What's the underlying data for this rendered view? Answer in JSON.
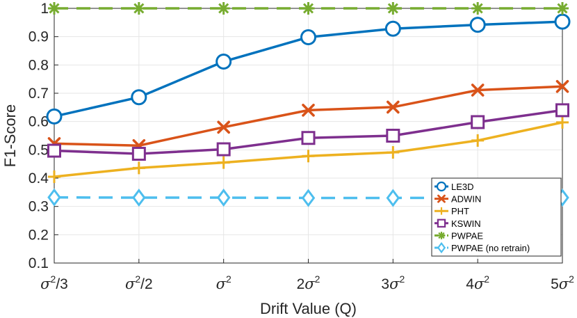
{
  "chart_data": {
    "type": "line",
    "title": "",
    "xlabel": "Drift Value (Q)",
    "ylabel": "F1-Score",
    "categories": [
      {
        "base": "σ",
        "sup": "2",
        "suffix": "/3"
      },
      {
        "base": "σ",
        "sup": "2",
        "suffix": "/2"
      },
      {
        "base": "σ",
        "sup": "2",
        "suffix": ""
      },
      {
        "prefix": "2",
        "base": "σ",
        "sup": "2",
        "suffix": ""
      },
      {
        "prefix": "3",
        "base": "σ",
        "sup": "2",
        "suffix": ""
      },
      {
        "prefix": "4",
        "base": "σ",
        "sup": "2",
        "suffix": ""
      },
      {
        "prefix": "5",
        "base": "σ",
        "sup": "2",
        "suffix": ""
      }
    ],
    "ylim": [
      0.1,
      1.0
    ],
    "yticks": [
      "0.1",
      "0.2",
      "0.3",
      "0.4",
      "0.5",
      "0.6",
      "0.7",
      "0.8",
      "0.9",
      "1"
    ],
    "grid": true,
    "legend_position": "bottom-right",
    "series": [
      {
        "name": "LE3D",
        "color": "#0072BD",
        "marker": "circle",
        "dash": false,
        "values": [
          0.618,
          0.686,
          0.812,
          0.898,
          0.928,
          0.942,
          0.953
        ]
      },
      {
        "name": "ADWIN",
        "color": "#D95319",
        "marker": "x",
        "dash": false,
        "values": [
          0.522,
          0.515,
          0.58,
          0.64,
          0.651,
          0.711,
          0.724
        ]
      },
      {
        "name": "PHT",
        "color": "#EDB120",
        "marker": "plus",
        "dash": false,
        "values": [
          0.405,
          0.436,
          0.455,
          0.478,
          0.491,
          0.533,
          0.597
        ]
      },
      {
        "name": "KSWIN",
        "color": "#7E2F8E",
        "marker": "square",
        "dash": false,
        "values": [
          0.497,
          0.486,
          0.502,
          0.542,
          0.55,
          0.598,
          0.64
        ]
      },
      {
        "name": "PWPAE",
        "color": "#77AC30",
        "marker": "star",
        "dash": true,
        "values": [
          1.0,
          1.0,
          1.0,
          1.0,
          1.0,
          1.0,
          1.0
        ]
      },
      {
        "name": "PWPAE (no retrain)",
        "color": "#4DBEEE",
        "marker": "diamond",
        "dash": true,
        "values": [
          0.332,
          0.331,
          0.331,
          0.33,
          0.33,
          0.331,
          0.331
        ]
      }
    ]
  }
}
